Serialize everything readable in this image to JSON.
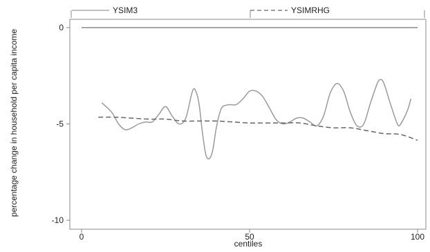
{
  "chart_data": {
    "type": "line",
    "xlabel": "centiles",
    "ylabel": "percentage change in household per capita income",
    "xlim": [
      0,
      100
    ],
    "ylim": [
      -10,
      0
    ],
    "x_ticks": [
      "0",
      "50",
      "100"
    ],
    "y_ticks": [
      "0",
      "-5",
      "-10"
    ],
    "grid": false,
    "legend_position": "top",
    "reference_line_y": 0,
    "series": [
      {
        "name": "YSIM3",
        "style": "solid",
        "color": "#9a9a9a",
        "points": [
          [
            6,
            -3.9
          ],
          [
            9,
            -4.4
          ],
          [
            11,
            -5.0
          ],
          [
            13,
            -5.3
          ],
          [
            15,
            -5.2
          ],
          [
            17,
            -5.0
          ],
          [
            19,
            -4.9
          ],
          [
            21,
            -4.9
          ],
          [
            23,
            -4.5
          ],
          [
            25,
            -4.1
          ],
          [
            27,
            -4.6
          ],
          [
            29,
            -5.0
          ],
          [
            31,
            -4.7
          ],
          [
            33,
            -3.3
          ],
          [
            34,
            -3.3
          ],
          [
            35,
            -4.0
          ],
          [
            36,
            -5.5
          ],
          [
            37,
            -6.6
          ],
          [
            38,
            -6.8
          ],
          [
            39,
            -6.4
          ],
          [
            40,
            -5.3
          ],
          [
            41,
            -4.5
          ],
          [
            42,
            -4.1
          ],
          [
            44,
            -4.0
          ],
          [
            46,
            -4.0
          ],
          [
            48,
            -3.7
          ],
          [
            50,
            -3.3
          ],
          [
            52,
            -3.3
          ],
          [
            54,
            -3.6
          ],
          [
            56,
            -4.2
          ],
          [
            58,
            -4.8
          ],
          [
            60,
            -5.0
          ],
          [
            62,
            -4.9
          ],
          [
            64,
            -4.7
          ],
          [
            66,
            -4.7
          ],
          [
            68,
            -4.9
          ],
          [
            70,
            -5.1
          ],
          [
            72,
            -4.6
          ],
          [
            74,
            -3.4
          ],
          [
            76,
            -2.9
          ],
          [
            78,
            -3.3
          ],
          [
            80,
            -4.4
          ],
          [
            82,
            -5.1
          ],
          [
            84,
            -5.0
          ],
          [
            86,
            -3.9
          ],
          [
            88,
            -2.9
          ],
          [
            89,
            -2.7
          ],
          [
            90,
            -2.9
          ],
          [
            92,
            -4.0
          ],
          [
            94,
            -5.0
          ],
          [
            95,
            -5.0
          ],
          [
            97,
            -4.3
          ],
          [
            98,
            -3.7
          ]
        ]
      },
      {
        "name": "YSIMRHG",
        "style": "dashed",
        "color": "#666666",
        "points": [
          [
            5,
            -4.65
          ],
          [
            10,
            -4.65
          ],
          [
            15,
            -4.7
          ],
          [
            20,
            -4.75
          ],
          [
            25,
            -4.75
          ],
          [
            30,
            -4.85
          ],
          [
            35,
            -4.85
          ],
          [
            40,
            -4.85
          ],
          [
            45,
            -4.9
          ],
          [
            50,
            -4.95
          ],
          [
            55,
            -4.95
          ],
          [
            60,
            -4.95
          ],
          [
            65,
            -4.95
          ],
          [
            70,
            -5.1
          ],
          [
            75,
            -5.2
          ],
          [
            80,
            -5.2
          ],
          [
            85,
            -5.35
          ],
          [
            90,
            -5.5
          ],
          [
            95,
            -5.55
          ],
          [
            100,
            -5.85
          ]
        ]
      }
    ]
  }
}
